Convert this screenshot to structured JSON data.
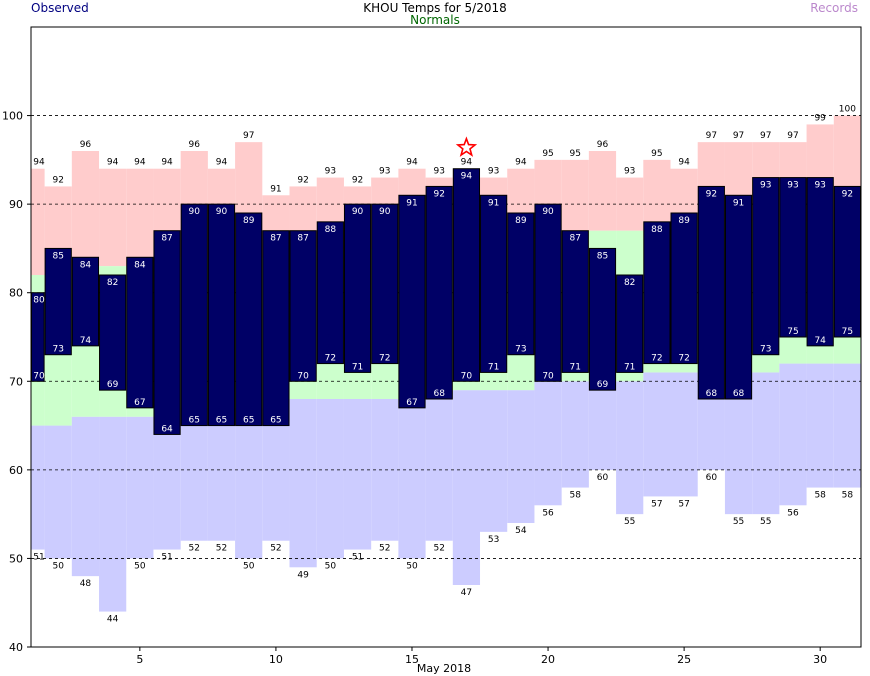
{
  "header": {
    "observed_label": "Observed",
    "title": "KHOU Temps for 5/2018",
    "normals_label": "Normals",
    "records_label": "Records"
  },
  "colors": {
    "observed": "#000066",
    "normals": "#ccffcc",
    "record_high": "#ffcccc",
    "record_low": "#ccccff",
    "header_observed": "#000080",
    "header_normals": "#006600",
    "header_records": "#bb88cc",
    "star": "#ff0000"
  },
  "chart_data": {
    "type": "bar",
    "title": "KHOU Temps for 5/2018",
    "xlabel": "May 2018",
    "ylabel": "",
    "days": [
      1,
      2,
      3,
      4,
      5,
      6,
      7,
      8,
      9,
      10,
      11,
      12,
      13,
      14,
      15,
      16,
      17,
      18,
      19,
      20,
      21,
      22,
      23,
      24,
      25,
      26,
      27,
      28,
      29,
      30,
      31
    ],
    "xticks": [
      5,
      10,
      15,
      20,
      25,
      30
    ],
    "ylim": [
      40,
      110
    ],
    "yticks": [
      40,
      50,
      60,
      70,
      80,
      90,
      100
    ],
    "gridlines_dashed": [
      50,
      60,
      70,
      80,
      90,
      100
    ],
    "observed_high": [
      80,
      85,
      84,
      82,
      84,
      87,
      90,
      90,
      89,
      87,
      87,
      88,
      90,
      90,
      91,
      92,
      94,
      91,
      89,
      90,
      87,
      85,
      82,
      88,
      89,
      92,
      91,
      93,
      93,
      93,
      92
    ],
    "observed_low": [
      70,
      73,
      74,
      69,
      67,
      64,
      65,
      65,
      65,
      65,
      70,
      72,
      71,
      72,
      67,
      68,
      70,
      71,
      73,
      70,
      71,
      69,
      71,
      72,
      72,
      68,
      68,
      73,
      75,
      74,
      75
    ],
    "normal_high": [
      82,
      82,
      83,
      83,
      83,
      84,
      84,
      84,
      84,
      84,
      85,
      85,
      85,
      85,
      86,
      86,
      86,
      86,
      86,
      86,
      87,
      87,
      87,
      87,
      87,
      88,
      88,
      88,
      88,
      88,
      88
    ],
    "normal_low": [
      65,
      65,
      66,
      66,
      66,
      66,
      67,
      67,
      67,
      67,
      68,
      68,
      68,
      68,
      68,
      69,
      69,
      69,
      69,
      70,
      70,
      70,
      70,
      71,
      71,
      71,
      71,
      71,
      72,
      72,
      72
    ],
    "record_high": [
      94,
      92,
      96,
      94,
      94,
      94,
      96,
      94,
      97,
      91,
      92,
      93,
      92,
      93,
      94,
      93,
      94,
      93,
      94,
      95,
      95,
      96,
      93,
      95,
      94,
      97,
      97,
      97,
      97,
      99,
      100
    ],
    "record_low": [
      51,
      50,
      48,
      44,
      50,
      51,
      52,
      52,
      50,
      52,
      49,
      50,
      51,
      52,
      50,
      52,
      47,
      53,
      54,
      56,
      58,
      60,
      55,
      57,
      57,
      60,
      55,
      55,
      56,
      58,
      58
    ],
    "record_set_marker_day": 17
  }
}
